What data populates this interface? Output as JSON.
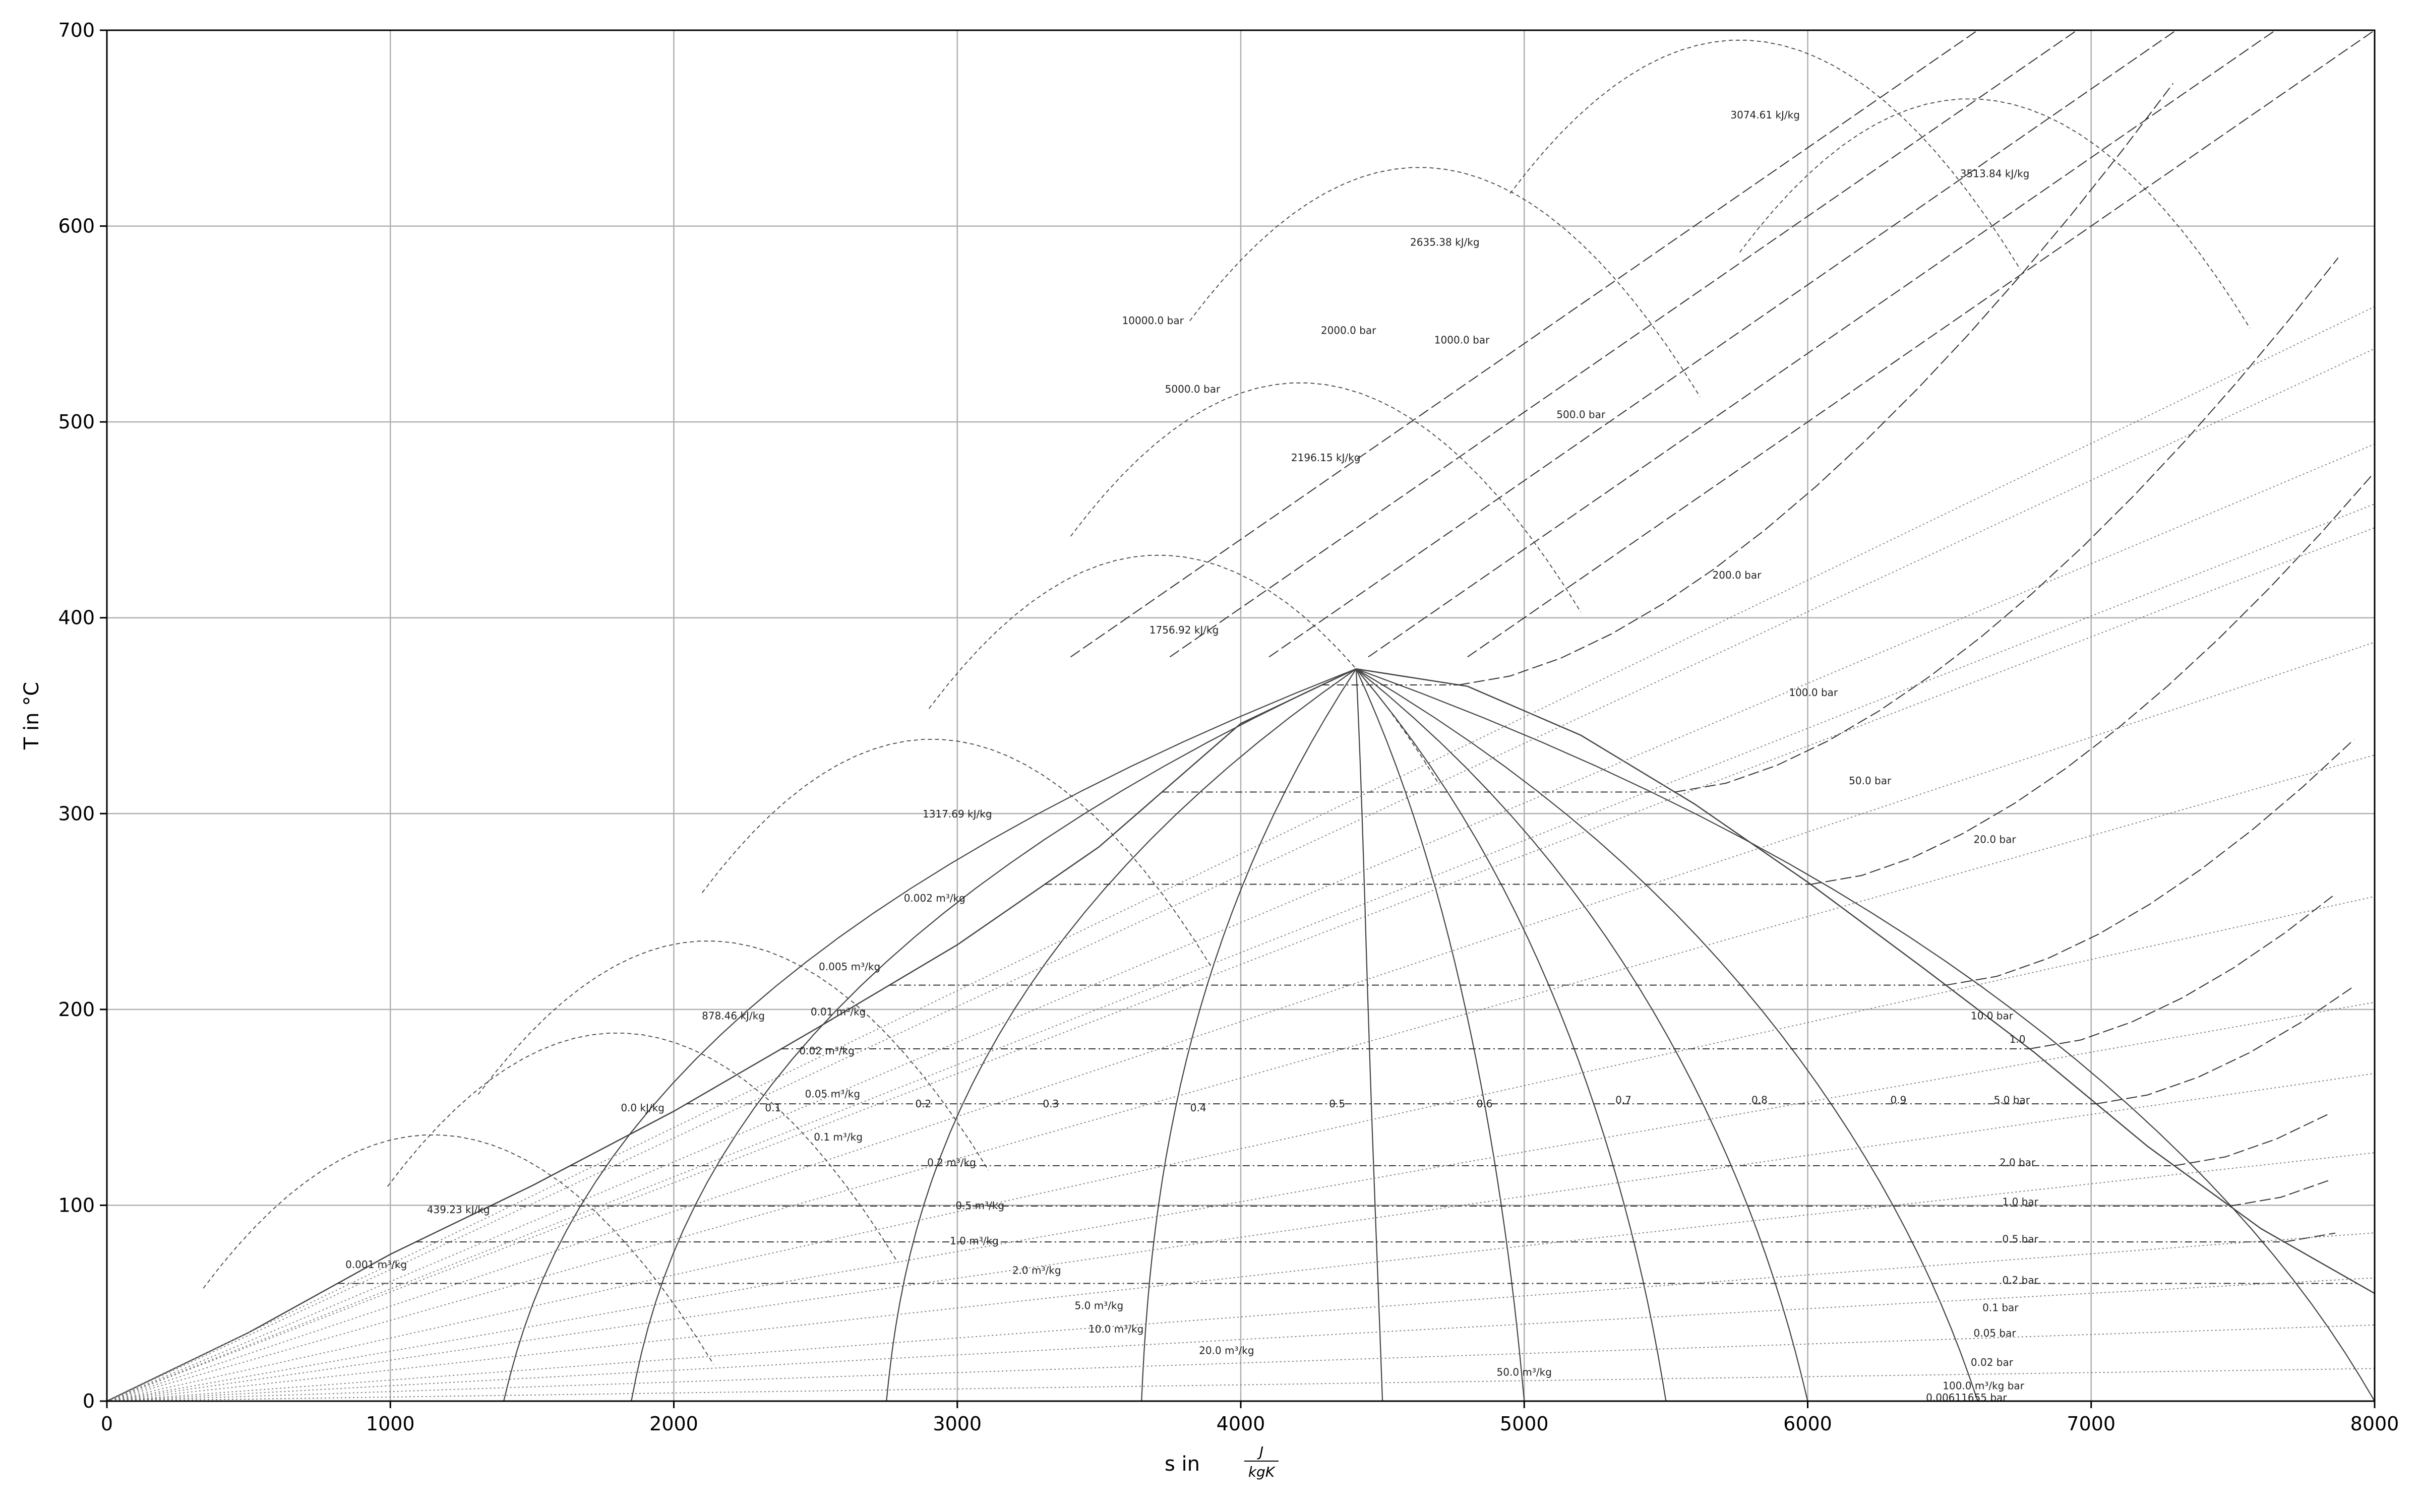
{
  "chart_data": {
    "type": "line",
    "title": "",
    "xlabel": "s in",
    "xlabel_fraction": {
      "numerator": "J",
      "denominator": "kgK"
    },
    "ylabel": "T in °C",
    "xlim": [
      0,
      8000
    ],
    "ylim": [
      0,
      700
    ],
    "x_ticks": [
      0,
      1000,
      2000,
      3000,
      4000,
      5000,
      6000,
      7000,
      8000
    ],
    "y_ticks": [
      0,
      100,
      200,
      300,
      400,
      500,
      600,
      700
    ],
    "grid": true,
    "critical_point": {
      "s": 4407,
      "T": 373.9
    },
    "saturation_dome": {
      "liquid": [
        [
          0,
          0
        ],
        [
          500,
          35
        ],
        [
          1000,
          75
        ],
        [
          1500,
          110
        ],
        [
          2000,
          148
        ],
        [
          2500,
          190
        ],
        [
          3000,
          233
        ],
        [
          3500,
          283
        ],
        [
          4000,
          346
        ],
        [
          4407,
          373.9
        ]
      ],
      "vapor": [
        [
          4407,
          373.9
        ],
        [
          4800,
          365
        ],
        [
          5200,
          340
        ],
        [
          5600,
          305
        ],
        [
          6000,
          265
        ],
        [
          6400,
          222
        ],
        [
          6800,
          178
        ],
        [
          7200,
          130
        ],
        [
          7600,
          88
        ],
        [
          8000,
          55
        ]
      ]
    },
    "quality_lines": [
      {
        "label": "0.1",
        "s_bottom": 1400,
        "s_top": 2700,
        "label_pos": {
          "s": 2350,
          "T": 148
        }
      },
      {
        "label": "0.2",
        "s_bottom": 1850,
        "s_top": 2900,
        "label_pos": {
          "s": 2880,
          "T": 150
        }
      },
      {
        "label": "0.3",
        "s_bottom": 2750,
        "s_top": 3300,
        "label_pos": {
          "s": 3330,
          "T": 150
        }
      },
      {
        "label": "0.4",
        "s_bottom": 3650,
        "s_top": 3900,
        "label_pos": {
          "s": 3850,
          "T": 148
        }
      },
      {
        "label": "0.5",
        "s_bottom": 4500,
        "s_top": 4300,
        "label_pos": {
          "s": 4340,
          "T": 150
        }
      },
      {
        "label": "0.6",
        "s_bottom": 5000,
        "s_top": 4500,
        "label_pos": {
          "s": 4860,
          "T": 150
        }
      },
      {
        "label": "0.7",
        "s_bottom": 5500,
        "s_top": 4600,
        "label_pos": {
          "s": 5350,
          "T": 152
        }
      },
      {
        "label": "0.8",
        "s_bottom": 6000,
        "s_top": 4700,
        "label_pos": {
          "s": 5830,
          "T": 152
        }
      },
      {
        "label": "0.9",
        "s_bottom": 6600,
        "s_top": 4750,
        "label_pos": {
          "s": 6320,
          "T": 152
        }
      },
      {
        "label": "1.0",
        "s_bottom": 8000,
        "s_top": 4800,
        "label_pos": {
          "s": 6740,
          "T": 183
        }
      }
    ],
    "isobars": [
      {
        "label": "0.00611655 bar",
        "T_sat": 0.01,
        "label_pos": {
          "s": 6560,
          "T": 0
        }
      },
      {
        "label": "100.0 m³/kg bar",
        "T_sat": 6,
        "label_pos": {
          "s": 6620,
          "T": 6
        }
      },
      {
        "label": "0.02 bar",
        "T_sat": 17.5,
        "label_pos": {
          "s": 6650,
          "T": 18
        }
      },
      {
        "label": "0.05 bar",
        "T_sat": 32.9,
        "label_pos": {
          "s": 6660,
          "T": 33
        }
      },
      {
        "label": "0.1 bar",
        "T_sat": 45.8,
        "label_pos": {
          "s": 6680,
          "T": 46
        }
      },
      {
        "label": "0.2 bar",
        "T_sat": 60.1,
        "label_pos": {
          "s": 6750,
          "T": 60
        }
      },
      {
        "label": "0.5 bar",
        "T_sat": 81.3,
        "label_pos": {
          "s": 6750,
          "T": 81
        }
      },
      {
        "label": "1.0 bar",
        "T_sat": 99.6,
        "label_pos": {
          "s": 6750,
          "T": 100
        }
      },
      {
        "label": "2.0 bar",
        "T_sat": 120.2,
        "label_pos": {
          "s": 6740,
          "T": 120
        }
      },
      {
        "label": "5.0 bar",
        "T_sat": 151.8,
        "label_pos": {
          "s": 6720,
          "T": 152
        }
      },
      {
        "label": "10.0 bar",
        "T_sat": 179.9,
        "label_pos": {
          "s": 6650,
          "T": 195
        }
      },
      {
        "label": "20.0 bar",
        "T_sat": 212.4,
        "label_pos": {
          "s": 6660,
          "T": 285
        }
      },
      {
        "label": "50.0 bar",
        "T_sat": 263.9,
        "label_pos": {
          "s": 6220,
          "T": 315
        }
      },
      {
        "label": "100.0 bar",
        "T_sat": 311.0,
        "label_pos": {
          "s": 6020,
          "T": 360
        }
      },
      {
        "label": "200.0 bar",
        "T_sat": 365.7,
        "label_pos": {
          "s": 5750,
          "T": 420
        }
      },
      {
        "label": "500.0 bar",
        "T_sat": null,
        "label_pos": {
          "s": 5200,
          "T": 502
        }
      },
      {
        "label": "1000.0 bar",
        "T_sat": null,
        "label_pos": {
          "s": 4780,
          "T": 540
        }
      },
      {
        "label": "2000.0 bar",
        "T_sat": null,
        "label_pos": {
          "s": 4380,
          "T": 545
        }
      },
      {
        "label": "5000.0 bar",
        "T_sat": null,
        "label_pos": {
          "s": 3830,
          "T": 515
        }
      },
      {
        "label": "10000.0 bar",
        "T_sat": null,
        "label_pos": {
          "s": 3690,
          "T": 550
        }
      }
    ],
    "isochores": [
      {
        "label": "0.001 m³/kg",
        "label_pos": {
          "s": 950,
          "T": 68
        }
      },
      {
        "label": "0.002 m³/kg",
        "label_pos": {
          "s": 2920,
          "T": 255
        }
      },
      {
        "label": "0.005 m³/kg",
        "label_pos": {
          "s": 2620,
          "T": 220
        }
      },
      {
        "label": "0.01 m³/kg",
        "label_pos": {
          "s": 2580,
          "T": 197
        }
      },
      {
        "label": "0.02 m³/kg",
        "label_pos": {
          "s": 2540,
          "T": 177
        }
      },
      {
        "label": "0.05 m³/kg",
        "label_pos": {
          "s": 2560,
          "T": 155
        }
      },
      {
        "label": "0.1 m³/kg",
        "label_pos": {
          "s": 2580,
          "T": 133
        }
      },
      {
        "label": "0.2 m³/kg",
        "label_pos": {
          "s": 2980,
          "T": 120
        }
      },
      {
        "label": "0.5 m³/kg",
        "label_pos": {
          "s": 3080,
          "T": 98
        }
      },
      {
        "label": "1.0 m³/kg",
        "label_pos": {
          "s": 3060,
          "T": 80
        }
      },
      {
        "label": "2.0 m³/kg",
        "label_pos": {
          "s": 3280,
          "T": 65
        }
      },
      {
        "label": "5.0 m³/kg",
        "label_pos": {
          "s": 3500,
          "T": 47
        }
      },
      {
        "label": "10.0 m³/kg",
        "label_pos": {
          "s": 3560,
          "T": 35
        }
      },
      {
        "label": "20.0 m³/kg",
        "label_pos": {
          "s": 3950,
          "T": 24
        }
      },
      {
        "label": "50.0 m³/kg",
        "label_pos": {
          "s": 5000,
          "T": 13
        }
      }
    ],
    "isenthalps": [
      {
        "label": "0.0 kJ/kg",
        "label_pos": {
          "s": 1890,
          "T": 148
        }
      },
      {
        "label": "439.23 kJ/kg",
        "label_pos": {
          "s": 1240,
          "T": 96
        }
      },
      {
        "label": "878.46 kJ/kg",
        "label_pos": {
          "s": 2210,
          "T": 195
        }
      },
      {
        "label": "1317.69 kJ/kg",
        "label_pos": {
          "s": 3000,
          "T": 298
        }
      },
      {
        "label": "1756.92 kJ/kg",
        "label_pos": {
          "s": 3800,
          "T": 392
        }
      },
      {
        "label": "2196.15 kJ/kg",
        "label_pos": {
          "s": 4300,
          "T": 480
        }
      },
      {
        "label": "2635.38 kJ/kg",
        "label_pos": {
          "s": 4720,
          "T": 590
        }
      },
      {
        "label": "3074.61 kJ/kg",
        "label_pos": {
          "s": 5850,
          "T": 655
        }
      },
      {
        "label": "3513.84 kJ/kg",
        "label_pos": {
          "s": 6660,
          "T": 625
        }
      }
    ]
  }
}
